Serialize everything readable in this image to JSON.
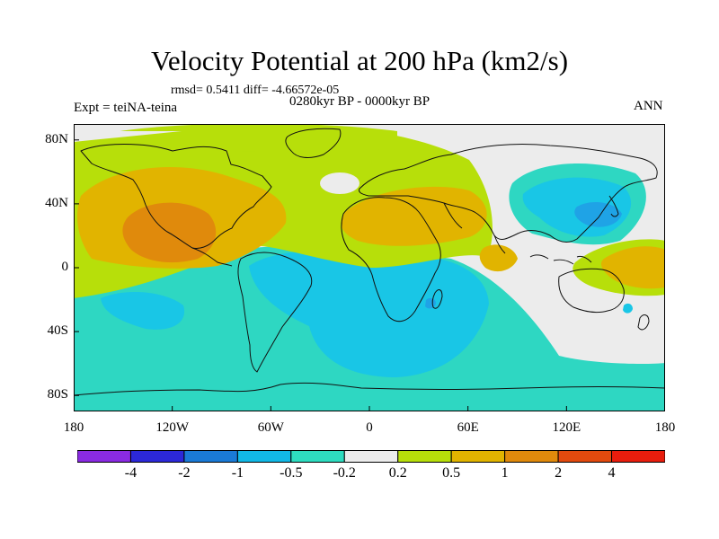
{
  "title": "Velocity Potential at 200 hPa (km2/s)",
  "stats_line": "rmsd= 0.5411 diff= -4.66572e-05",
  "period_line": "0280kyr BP - 0000kyr BP",
  "experiment_label": "Expt = teiNA-teina",
  "season_label": "ANN",
  "x_axis": {
    "ticks": [
      "180",
      "120W",
      "60W",
      "0",
      "60E",
      "120E",
      "180"
    ]
  },
  "y_axis": {
    "ticks": [
      "80N",
      "40N",
      "0",
      "40S",
      "80S"
    ]
  },
  "colorbar": {
    "colors": [
      "#8a2be2",
      "#2c28d8",
      "#1a7ad6",
      "#12b8e6",
      "#2edcc0",
      "#ececec",
      "#b7df0a",
      "#e1b400",
      "#e08a0c",
      "#e24a0e",
      "#e81d0d"
    ],
    "labels": [
      "-4",
      "-2",
      "-1",
      "-0.5",
      "-0.2",
      "0.2",
      "0.5",
      "1",
      "2",
      "4"
    ]
  },
  "palette": {
    "neg_1": "#1fa3e6",
    "neg_05": "#19c6e6",
    "neg_02": "#2ed7c2",
    "neutral": "#ececec",
    "pos_02": "#b7df0a",
    "pos_05": "#e1b400",
    "pos_1": "#e08a0c",
    "coast": "#111111"
  }
}
